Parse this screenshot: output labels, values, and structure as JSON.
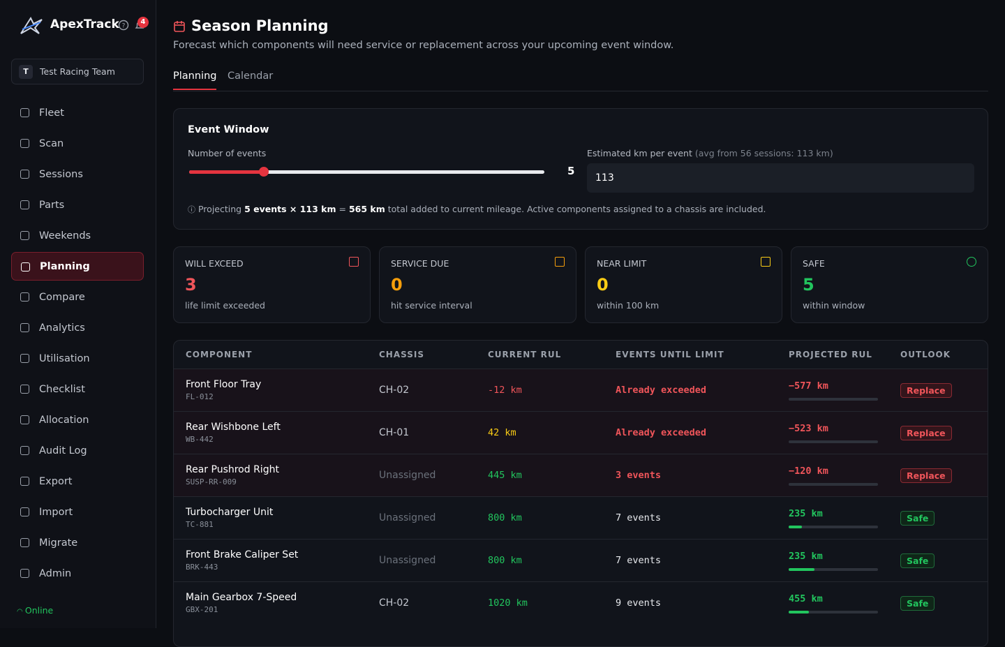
{
  "sidebar": {
    "brand": "ApexTrack",
    "notifications": "4",
    "team_initial": "T",
    "team": "Test Racing Team",
    "nav": [
      "Fleet",
      "Scan",
      "Sessions",
      "Parts",
      "Weekends",
      "Planning",
      "Compare",
      "Analytics",
      "Utilisation",
      "Checklist",
      "Allocation",
      "Audit Log",
      "Export",
      "Import",
      "Migrate",
      "Admin"
    ],
    "active": "Planning",
    "status": "Online"
  },
  "header": {
    "title": "Season Planning",
    "subtitle": "Forecast which components will need service or replacement across your upcoming event window."
  },
  "tabs": [
    "Planning",
    "Calendar"
  ],
  "active_tab": "Planning",
  "event_window": {
    "title": "Event Window",
    "events_label": "Number of events",
    "events": 5,
    "events_min": 1,
    "events_max": 20,
    "km_label": "Estimated km per event",
    "km_hint": "(avg from 56 sessions: 113 km)",
    "km_value": "113",
    "note_prefix": "Projecting",
    "note_bold_1": "5 events × 113 km",
    "note_mid": "=",
    "note_bold_2": "565 km",
    "note_suffix": "total added to current mileage. Active components assigned to a chassis are included."
  },
  "stats": [
    {
      "label": "WILL EXCEED",
      "value": 3,
      "caption": "life limit exceeded",
      "color": "#f0555a"
    },
    {
      "label": "SERVICE DUE",
      "value": 0,
      "caption": "hit service interval",
      "color": "#f59e0b"
    },
    {
      "label": "NEAR LIMIT",
      "value": 0,
      "caption": "within 100 km",
      "color": "#facc15"
    },
    {
      "label": "SAFE",
      "value": 5,
      "caption": "within window",
      "color": "#22c55e"
    }
  ],
  "table": {
    "columns": [
      "COMPONENT",
      "CHASSIS",
      "CURRENT RUL",
      "EVENTS UNTIL LIMIT",
      "PROJECTED RUL",
      "OUTLOOK"
    ],
    "rows": [
      {
        "component": "Front Floor Tray",
        "code": "FL-012",
        "chassis": "CH-02",
        "current_rul": "-12 km",
        "rul_color": "#f0555a",
        "events_until_limit": "Already exceeded",
        "projected_rul": "−577 km",
        "progress": 0,
        "outlook": "Replace",
        "tone": "danger"
      },
      {
        "component": "Rear Wishbone Left",
        "code": "WB-442",
        "chassis": "CH-01",
        "current_rul": "42 km",
        "rul_color": "#facc15",
        "events_until_limit": "Already exceeded",
        "projected_rul": "−523 km",
        "progress": 0,
        "outlook": "Replace",
        "tone": "danger"
      },
      {
        "component": "Rear Pushrod Right",
        "code": "SUSP-RR-009",
        "chassis": "Unassigned",
        "current_rul": "445 km",
        "rul_color": "#22c55e",
        "events_until_limit": "3 events",
        "projected_rul": "−120 km",
        "progress": 0,
        "outlook": "Replace",
        "tone": "danger"
      },
      {
        "component": "Turbocharger Unit",
        "code": "TC-881",
        "chassis": "Unassigned",
        "current_rul": "800 km",
        "rul_color": "#22c55e",
        "events_until_limit": "7 events",
        "projected_rul": "235 km",
        "progress": 15,
        "outlook": "Safe",
        "tone": "safe"
      },
      {
        "component": "Front Brake Caliper Set",
        "code": "BRK-443",
        "chassis": "Unassigned",
        "current_rul": "800 km",
        "rul_color": "#22c55e",
        "events_until_limit": "7 events",
        "projected_rul": "235 km",
        "progress": 29,
        "outlook": "Safe",
        "tone": "safe"
      },
      {
        "component": "Main Gearbox 7-Speed",
        "code": "GBX-201",
        "chassis": "CH-02",
        "current_rul": "1020 km",
        "rul_color": "#22c55e",
        "events_until_limit": "9 events",
        "projected_rul": "455 km",
        "progress": 23,
        "outlook": "Safe",
        "tone": "safe"
      }
    ]
  }
}
